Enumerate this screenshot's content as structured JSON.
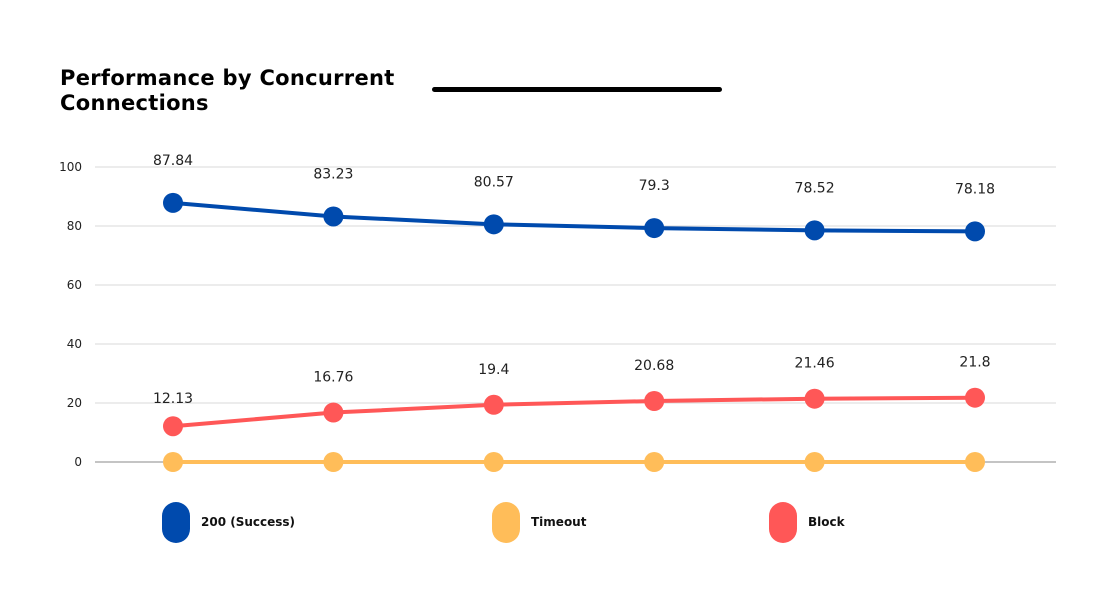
{
  "chart_data": {
    "type": "line",
    "title": "Performance by Concurrent Connections",
    "xlabel": "",
    "ylabel": "",
    "ylim": [
      0,
      100
    ],
    "yticks": [
      0,
      20,
      40,
      60,
      80,
      100
    ],
    "grid": true,
    "legend_position": "bottom",
    "x": [
      1,
      2,
      3,
      4,
      5,
      6
    ],
    "series": [
      {
        "name": "200 (Success)",
        "color": "#004AAD",
        "values": [
          87.84,
          83.23,
          80.57,
          79.3,
          78.52,
          78.18
        ],
        "labels": [
          "87.84",
          "83.23",
          "80.57",
          "79.3",
          "78.52",
          "78.18"
        ]
      },
      {
        "name": "Timeout",
        "color": "#FFBD59",
        "values": [
          0,
          0,
          0,
          0,
          0,
          0
        ],
        "labels": []
      },
      {
        "name": "Block",
        "color": "#FF5757",
        "values": [
          12.13,
          16.76,
          19.4,
          20.68,
          21.46,
          21.8
        ],
        "labels": [
          "12.13",
          "16.76",
          "19.4",
          "20.68",
          "21.46",
          "21.8"
        ]
      }
    ]
  }
}
